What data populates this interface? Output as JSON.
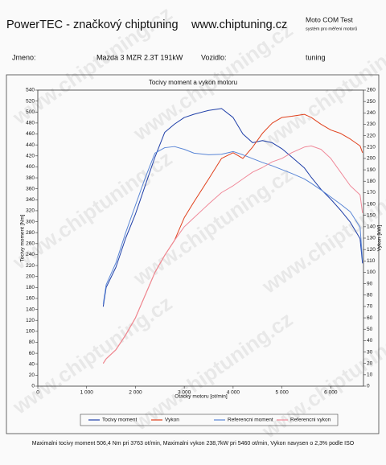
{
  "header": {
    "brand": "PowerTEC - značkový chiptuning",
    "website": "www.chiptuning.cz",
    "system": "Moto COM Test",
    "system_sub": "systém pro měření motorů",
    "name_label": "Jmeno:",
    "name": "Mazda 3 MZR 2.3T 191kW",
    "vehicle_label": "Vozidlo:",
    "vehicle": "tuning",
    "watermark": "www.chiptuning.cz"
  },
  "chart_data": {
    "type": "line",
    "title": "Tocivy moment a vykon motoru",
    "x_label": "Otacky motoru [ot/min]",
    "y_label": "Tocivy moment [Nm]",
    "y2_label": "Vykon [kW]",
    "x": [
      1340,
      1400,
      1600,
      1800,
      2000,
      2200,
      2400,
      2600,
      2800,
      3000,
      3200,
      3500,
      3763,
      4000,
      4200,
      4400,
      4600,
      4800,
      5000,
      5200,
      5460,
      5600,
      5800,
      6000,
      6200,
      6400,
      6600,
      6650
    ],
    "series": [
      {
        "name": "Tocivy moment",
        "color": "#1f3fa8",
        "values": [
          145,
          180,
          217,
          270,
          314,
          366,
          418,
          463,
          478,
          490,
          496,
          503,
          506.4,
          490,
          460,
          444,
          448,
          444,
          433,
          418,
          398,
          381,
          359,
          341,
          321,
          299,
          269,
          224
        ]
      },
      {
        "name": "Vykon",
        "color": "#e0401c",
        "axis": "y2",
        "values": [
          20,
          24,
          32,
          45,
          60,
          80,
          100,
          115,
          128,
          148,
          162,
          182,
          200,
          205,
          200,
          210,
          222,
          231,
          236,
          237,
          238.7,
          236,
          230,
          225,
          222,
          217,
          211,
          205
        ]
      },
      {
        "name": "Referencni moment",
        "color": "#5a86d6",
        "values": [
          150,
          185,
          225,
          280,
          330,
          380,
          425,
          435,
          437,
          432,
          425,
          422,
          423,
          428,
          422,
          415,
          408,
          402,
          395,
          388,
          378,
          370,
          358,
          345,
          332,
          318,
          290,
          230
        ]
      },
      {
        "name": "Referencni vykon",
        "color": "#f08a9a",
        "axis": "y2",
        "values": [
          20,
          24,
          32,
          45,
          60,
          80,
          100,
          115,
          128,
          140,
          148,
          160,
          170,
          176,
          182,
          188,
          192,
          197,
          200,
          205,
          210,
          211,
          208,
          200,
          188,
          176,
          168,
          152
        ]
      }
    ],
    "xlim": [
      0,
      6670
    ],
    "xticks": [
      0,
      {
        "value": 1000,
        "label": "1 000"
      },
      {
        "value": 2000,
        "label": "2 000"
      },
      {
        "value": 3000,
        "label": "3 000"
      },
      {
        "value": 4000,
        "label": "4 000"
      },
      {
        "value": 5000,
        "label": "5 000"
      },
      {
        "value": 6000,
        "label": "6 000"
      }
    ],
    "ylim": [
      0,
      540
    ],
    "yticks": [
      0,
      20,
      40,
      60,
      80,
      100,
      120,
      140,
      160,
      180,
      200,
      220,
      240,
      260,
      280,
      300,
      320,
      340,
      360,
      380,
      400,
      420,
      440,
      460,
      480,
      500,
      520,
      540
    ],
    "y2lim": [
      0,
      260
    ],
    "y2ticks": [
      0,
      10,
      20,
      30,
      40,
      50,
      60,
      70,
      80,
      90,
      100,
      110,
      120,
      130,
      140,
      150,
      160,
      170,
      180,
      190,
      200,
      210,
      220,
      230,
      240,
      250,
      260
    ],
    "grid": false,
    "footer": "Maximalni tocivy moment 506,4 Nm pri 3763 ot/min, Maximalni vykon 238,7kW pri 5460 ot/min, Vykon navysen o 2,3% podle ISO"
  }
}
